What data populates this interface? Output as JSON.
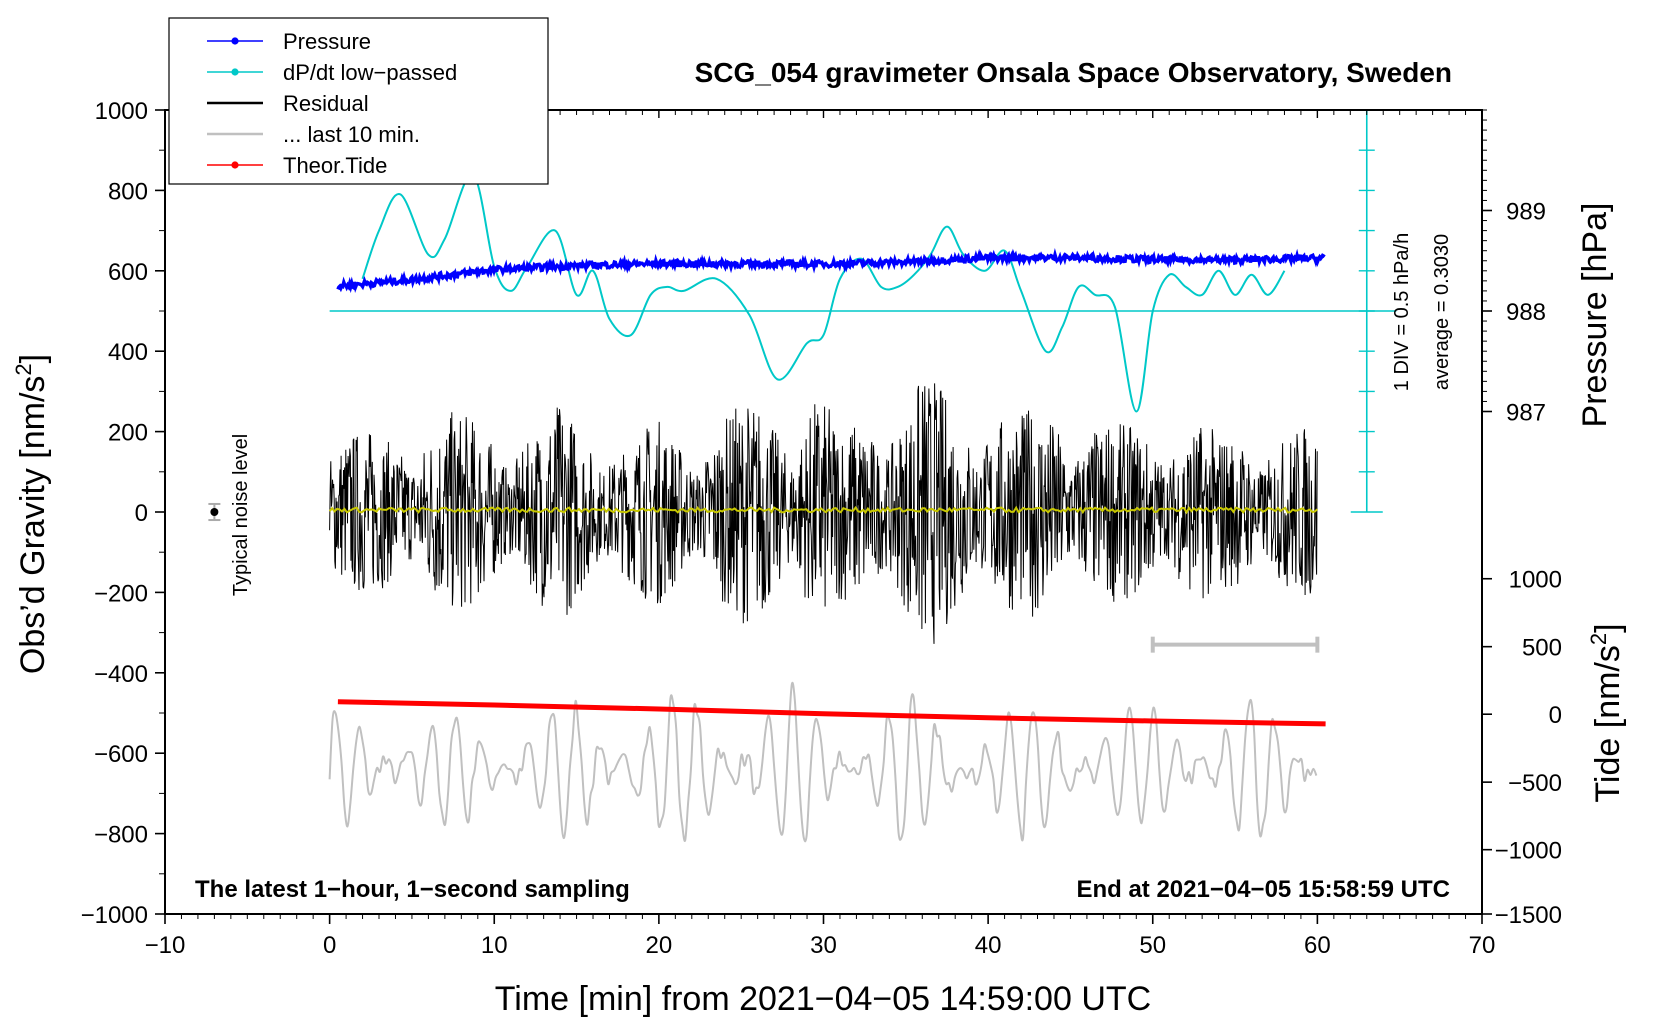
{
  "chart_data": {
    "type": "line",
    "title": "SCG_054 gravimeter Onsala Space Observatory, Sweden",
    "xlabel": "Time [min] from 2021−04−05 14:59:00 UTC",
    "ylabel_left": "Obs’d Gravity [nm/s2]",
    "ylabel_left_parts": {
      "main": "Obs’d Gravity [nm/s",
      "sup": "2",
      "end": "]"
    },
    "ylabel_right_top": "Pressure [hPa]",
    "ylabel_right_bottom": "Tide [nm/s2]",
    "ylabel_right_bottom_parts": {
      "main": "Tide [nm/s",
      "sup": "2",
      "end": "]"
    },
    "xlim": [
      -10,
      70
    ],
    "ylim_left": [
      -1000,
      1000
    ],
    "x_ticks": [
      -10,
      0,
      10,
      20,
      30,
      40,
      50,
      60,
      70
    ],
    "x_tick_labels": [
      "−10",
      "0",
      "10",
      "20",
      "30",
      "40",
      "50",
      "60",
      "70"
    ],
    "y_ticks_left": [
      1000,
      800,
      600,
      400,
      200,
      0,
      -200,
      -400,
      -600,
      -800,
      -1000
    ],
    "y_tick_labels_left": [
      "1000",
      "800",
      "600",
      "400",
      "200",
      "0",
      "−200",
      "−400",
      "−600",
      "−800",
      "−1000"
    ],
    "pressure_axis": {
      "ticks": [
        989,
        988,
        987
      ],
      "labels": [
        "989",
        "988",
        "987"
      ],
      "left_equiv": [
        750,
        500,
        250
      ]
    },
    "tide_axis": {
      "ticks": [
        1000,
        500,
        0,
        -500,
        -1000,
        -1500
      ],
      "labels": [
        "1000",
        "500",
        "0",
        "−500",
        "−1000",
        "−1500"
      ],
      "left_equiv": [
        -166,
        -335,
        -503,
        -672,
        -840,
        -1000
      ]
    },
    "legend": {
      "position": "top-left",
      "entries": [
        {
          "label": "Pressure",
          "color": "#0000ff",
          "marker": "dot"
        },
        {
          "label": "dP/dt low−passed",
          "color": "#00c8c8",
          "marker": "dot"
        },
        {
          "label": "Residual",
          "color": "#000000",
          "marker": "none"
        },
        {
          "label": "... last 10 min.",
          "color": "#c0c0c0",
          "marker": "none"
        },
        {
          "label": "Theor.Tide",
          "color": "#ff0000",
          "marker": "dot"
        }
      ]
    },
    "annotations": {
      "bottom_left": "The latest 1−hour, 1−second sampling",
      "bottom_right": "End at 2021−04−05 15:58:59 UTC",
      "noise_label": "Typical noise level",
      "div_label": "1 DIV = 0.5 hPa/h",
      "average_label": "average = 0.3030"
    },
    "noise_bar": {
      "x": -7,
      "y": 0,
      "half_range": 20
    },
    "last10_bar": {
      "x_start": 50,
      "x_end": 60,
      "y": -330
    },
    "div_scale": {
      "x": 63,
      "y_top": 1000,
      "y_bottom": 0,
      "step": 100
    },
    "series": [
      {
        "name": "Pressure",
        "color": "#0000ff",
        "x": [
          0.5,
          5,
          10,
          15,
          20,
          25,
          30,
          35,
          40,
          45,
          50,
          55,
          60.5
        ],
        "y": [
          562,
          578,
          603,
          613,
          618,
          617,
          617,
          622,
          632,
          633,
          628,
          627,
          632
        ]
      },
      {
        "name": "dP/dt low-passed",
        "color": "#00c8c8",
        "baseline": 500,
        "x": [
          2,
          3,
          4.3,
          6,
          7,
          8.7,
          10,
          11,
          12,
          13.7,
          15,
          16,
          17,
          18.3,
          19.5,
          20.5,
          21.5,
          23.5,
          25.5,
          27.2,
          29,
          30,
          31,
          32.3,
          33.5,
          34.5,
          35.5,
          36.5,
          37.5,
          38.5,
          39.8,
          41,
          42,
          43.5,
          44.5,
          45.5,
          46.5,
          47.7,
          49,
          50,
          51,
          52,
          53,
          54,
          55,
          56,
          57,
          58
        ],
        "y": [
          580,
          700,
          790,
          640,
          680,
          840,
          610,
          550,
          610,
          700,
          540,
          600,
          480,
          440,
          540,
          560,
          550,
          580,
          490,
          330,
          420,
          440,
          580,
          630,
          560,
          560,
          590,
          640,
          710,
          640,
          600,
          650,
          550,
          400,
          460,
          560,
          540,
          510,
          250,
          500,
          590,
          560,
          540,
          600,
          540,
          590,
          540,
          600
        ]
      },
      {
        "name": "Residual",
        "color": "#000000",
        "x": [
          0,
          2,
          4,
          6,
          8,
          10,
          12,
          14,
          16,
          18,
          20,
          22,
          24,
          26,
          28,
          29.5,
          31,
          33,
          35,
          36,
          38,
          40,
          42,
          44,
          46,
          48,
          50,
          52,
          54,
          56,
          58,
          60
        ],
        "amplitude": [
          220,
          210,
          200,
          280,
          250,
          230,
          220,
          280,
          230,
          190,
          240,
          210,
          260,
          290,
          270,
          330,
          220,
          280,
          300,
          360,
          290,
          300,
          250,
          290,
          260,
          220,
          230,
          260,
          200,
          230,
          220,
          220
        ]
      },
      {
        "name": "Residual smoothed",
        "color": "#c8c800",
        "x": [
          0,
          60
        ],
        "y": [
          5,
          5
        ]
      },
      {
        "name": "Theor.Tide",
        "color": "#ff0000",
        "x": [
          0.5,
          10,
          20,
          30,
          40,
          50,
          60.5
        ],
        "y": [
          -472,
          -480,
          -490,
          -502,
          -512,
          -520,
          -527
        ]
      },
      {
        "name": "Last 10 min.",
        "color": "#c0c0c0",
        "x": [
          0,
          10,
          20,
          30,
          40,
          50,
          60
        ],
        "center": [
          -640,
          -640,
          -640,
          -640,
          -640,
          -640,
          -640
        ],
        "amplitude": [
          150,
          150,
          190,
          200,
          180,
          150,
          190
        ]
      }
    ]
  }
}
